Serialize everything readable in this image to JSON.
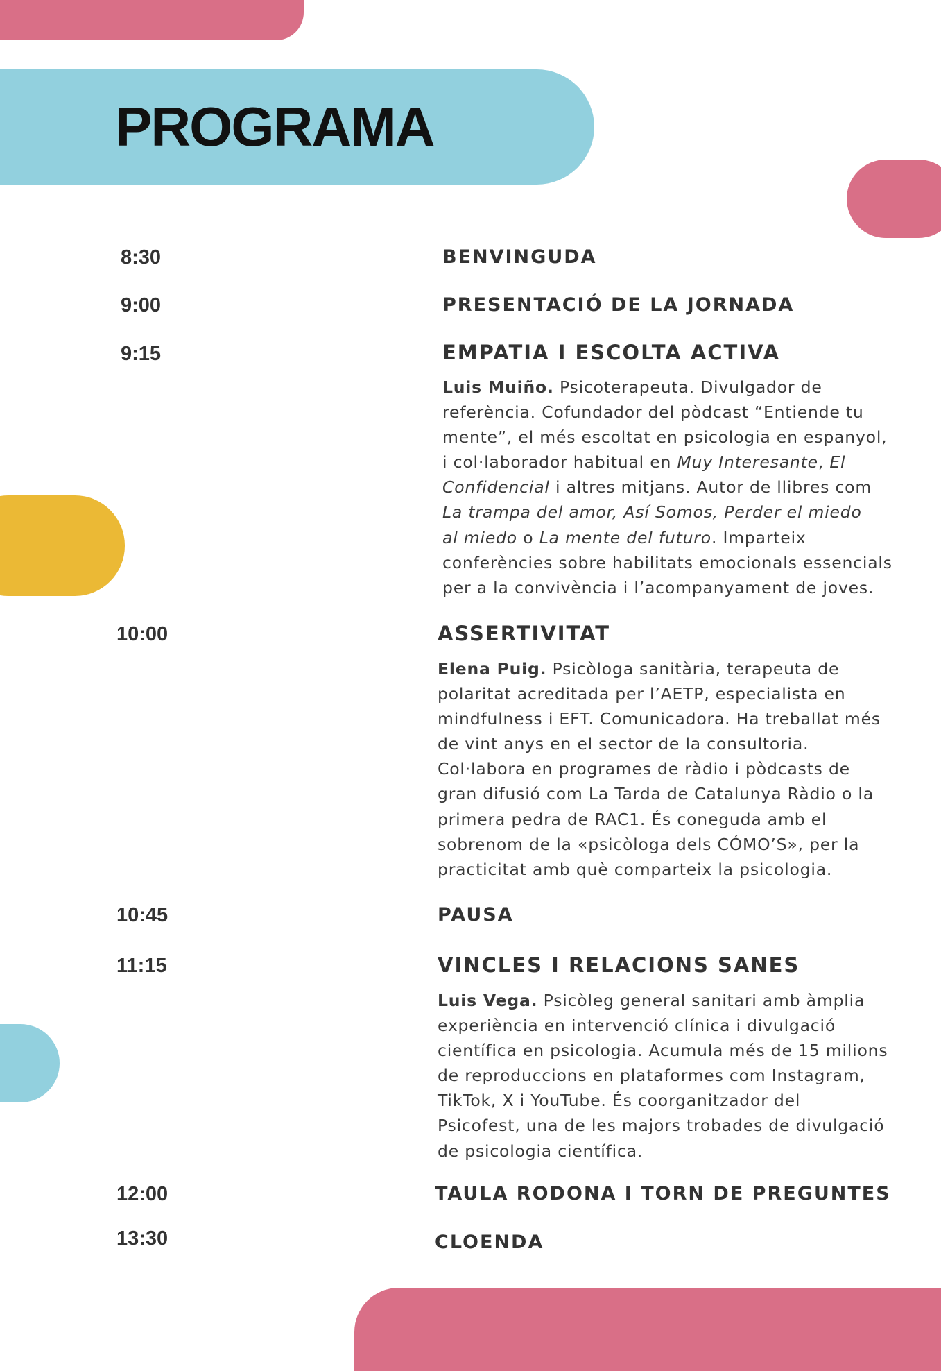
{
  "colors": {
    "pink": "#d96f87",
    "blue": "#92d0de",
    "yellow": "#ebb935",
    "text": "#3a3a3a"
  },
  "title": "PROGRAMA",
  "schedule": [
    {
      "time": "8:30",
      "title": "BENVINGUDA"
    },
    {
      "time": "9:00",
      "title": "PRESENTACIÓ DE LA JORNADA"
    },
    {
      "time": "9:15",
      "title": "EMPATIA I ESCOLTA ACTIVA",
      "description": [
        [
          {
            "t": "Luis Muiño.",
            "s": "b"
          },
          {
            "t": " Psicoterapeuta. Divulgador de",
            "s": ""
          }
        ],
        [
          {
            "t": "referència. Cofundador del pòdcast “Entiende tu",
            "s": ""
          }
        ],
        [
          {
            "t": "mente”, el més escoltat en psicologia en espanyol,",
            "s": ""
          }
        ],
        [
          {
            "t": "i col·laborador habitual en ",
            "s": ""
          },
          {
            "t": "Muy Interesante",
            "s": "i"
          },
          {
            "t": ", ",
            "s": ""
          },
          {
            "t": "El",
            "s": "i"
          }
        ],
        [
          {
            "t": "Confidencial",
            "s": "i"
          },
          {
            "t": " i altres mitjans. Autor de llibres com",
            "s": ""
          }
        ],
        [
          {
            "t": "La trampa del amor, Así Somos, Perder el miedo",
            "s": "i"
          }
        ],
        [
          {
            "t": "al miedo",
            "s": "i"
          },
          {
            "t": " o ",
            "s": ""
          },
          {
            "t": "La mente del futuro",
            "s": "i"
          },
          {
            "t": ". Imparteix",
            "s": ""
          }
        ],
        [
          {
            "t": "conferències sobre habilitats emocionals essencials",
            "s": ""
          }
        ],
        [
          {
            "t": "per a la convivència i l’acompanyament de joves.",
            "s": ""
          }
        ]
      ]
    },
    {
      "time": "10:00",
      "title": "ASSERTIVITAT",
      "description": [
        [
          {
            "t": "Elena Puig.",
            "s": "b"
          },
          {
            "t": " Psicòloga sanitària, terapeuta de",
            "s": ""
          }
        ],
        [
          {
            "t": "polaritat acreditada per l’AETP, especialista en",
            "s": ""
          }
        ],
        [
          {
            "t": "mindfulness i EFT. Comunicadora. Ha treballat més",
            "s": ""
          }
        ],
        [
          {
            "t": "de vint anys en el sector de la consultoria.",
            "s": ""
          }
        ],
        [
          {
            "t": "Col·labora en programes de ràdio i pòdcasts de",
            "s": ""
          }
        ],
        [
          {
            "t": "gran difusió com La Tarda de Catalunya Ràdio o la",
            "s": ""
          }
        ],
        [
          {
            "t": "primera pedra de RAC1. És coneguda amb el",
            "s": ""
          }
        ],
        [
          {
            "t": "sobrenom de la «psicòloga dels CÓMO’S», per la",
            "s": ""
          }
        ],
        [
          {
            "t": "practicitat amb què comparteix la psicologia.",
            "s": ""
          }
        ]
      ]
    },
    {
      "time": "10:45",
      "title": "PAUSA"
    },
    {
      "time": "11:15",
      "title": "VINCLES I RELACIONS SANES",
      "description": [
        [
          {
            "t": "Luis Vega.",
            "s": "b"
          },
          {
            "t": " Psicòleg general sanitari amb àmplia",
            "s": ""
          }
        ],
        [
          {
            "t": "experiència en intervenció clínica i divulgació",
            "s": ""
          }
        ],
        [
          {
            "t": "científica en psicologia. Acumula més de 15 milions",
            "s": ""
          }
        ],
        [
          {
            "t": "de reproduccions en plataformes com Instagram,",
            "s": ""
          }
        ],
        [
          {
            "t": "TikTok, X i YouTube. És coorganitzador del",
            "s": ""
          }
        ],
        [
          {
            "t": "Psicofest, una de les majors trobades de divulgació",
            "s": ""
          }
        ],
        [
          {
            "t": "de psicologia científica.",
            "s": ""
          }
        ]
      ]
    },
    {
      "time": "12:00",
      "title": "TAULA RODONA I TORN DE PREGUNTES"
    },
    {
      "time": "13:30",
      "title": "CLOENDA"
    }
  ]
}
